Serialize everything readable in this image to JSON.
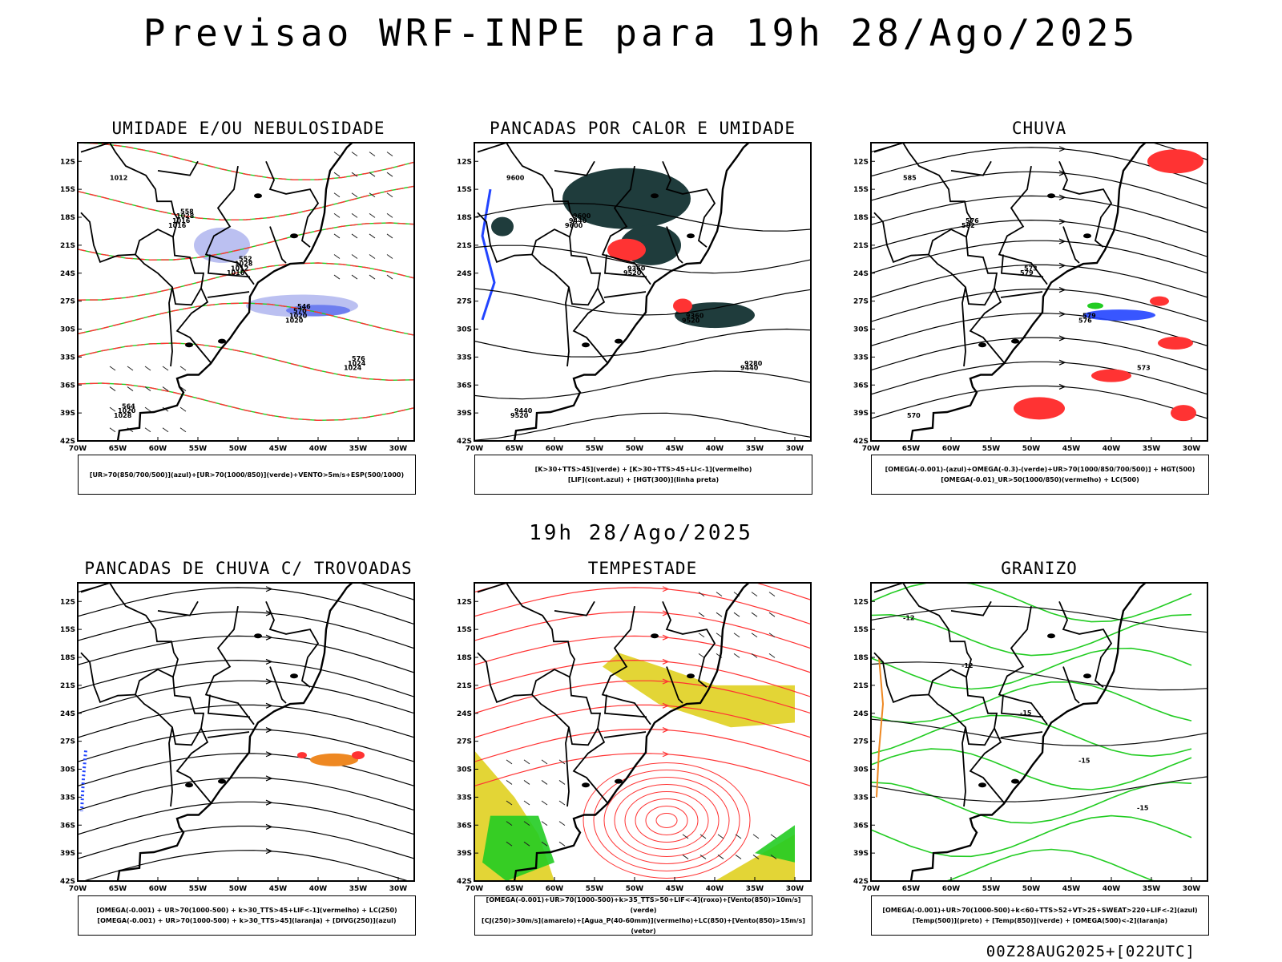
{
  "header": {
    "title": "Previsao WRF-INPE  para 19h 28/Ago/2025"
  },
  "middle_label": "19h 28/Ago/2025",
  "footer": "00Z28AUG2025+[022UTC]",
  "axes": {
    "lat_labels": [
      "12S",
      "15S",
      "18S",
      "21S",
      "24S",
      "27S",
      "30S",
      "33S",
      "36S",
      "39S",
      "42S"
    ],
    "lon_labels": [
      "70W",
      "65W",
      "60W",
      "55W",
      "50W",
      "45W",
      "40W",
      "35W",
      "30W"
    ]
  },
  "colors": {
    "green": "#22cc22",
    "red": "#ff3333",
    "blue": "#2244ff",
    "lavender": "#aab0ee",
    "darkteal": "#1f3c3c",
    "yellow": "#e0d020",
    "orange": "#ee8822",
    "black": "#000000"
  },
  "panels": [
    {
      "title": "UMIDADE E/OU NEBULOSIDADE",
      "legend": [
        "[UR>70(850/700/500)](azul)+[UR>70(1000/850)](verde)+VENTO>5m/s+ESP(500/1000)"
      ],
      "labels": [
        "1012",
        "1016",
        "1016",
        "1020",
        "1024",
        "1028",
        "1016",
        "1012",
        "1020",
        "1024",
        "1020",
        "1028",
        "1028",
        "570",
        "576",
        "564",
        "558",
        "552",
        "546"
      ]
    },
    {
      "title": "PANCADAS POR CALOR E UMIDADE",
      "legend": [
        "[K>30+TTS>45](verde) + [K>30+TTS>45+LI<-1](vermelho)",
        "[LIF](cont.azul) + [HGT(300)](linha preta)"
      ],
      "labels": [
        "9600",
        "9600",
        "9520",
        "9520",
        "9440",
        "9520",
        "9440",
        "9360",
        "9360",
        "9280",
        "9440",
        "9600"
      ]
    },
    {
      "title": "CHUVA",
      "legend": [
        "[OMEGA(-0.001)-(azul)+OMEGA(-0.3)-(verde)+UR>70(1000/850/700/500)] + HGT(500)",
        "[OMEGA(-0.01)_UR>50(1000/850)(vermelho) + LC(500)"
      ],
      "labels": [
        "585",
        "582",
        "579",
        "576",
        "573",
        "570",
        "576",
        "573",
        "579"
      ]
    },
    {
      "title": "PANCADAS DE CHUVA C/ TROVOADAS",
      "legend": [
        "[OMEGA(-0.001) + UR>70(1000-500) + k>30_TTS>45+LIF<-1](vermelho) + LC(250)",
        "[OMEGA(-0.001) + UR>70(1000-500) + k>30_TTS>45](laranja) + [DIVG(250)](azul)"
      ],
      "labels": []
    },
    {
      "title": "TEMPESTADE",
      "legend": [
        "[OMEGA(-0.001)+UR>70(1000-500)+k>35_TTS>50+LIF<-4](roxo)+[Vento(850)>10m/s](verde)",
        "[CJ(250)>30m/s](amarelo)+[Agua_P(40-60mm)](vermelho)+LC(850)+[Vento(850)>15m/s](vetor)"
      ],
      "labels": []
    },
    {
      "title": "GRANIZO",
      "legend": [
        "[OMEGA(-0.001)+UR>70(1000-500)+k<60+TTS>52+VT>25+SWEAT>220+LIF<-2](azul)",
        "[Temp(500)](preto) + [Temp(850)](verde) + [OMEGA(500)<-2](laranja)"
      ],
      "labels": [
        "-12",
        "-12",
        "-15",
        "-15",
        "-15"
      ]
    }
  ]
}
